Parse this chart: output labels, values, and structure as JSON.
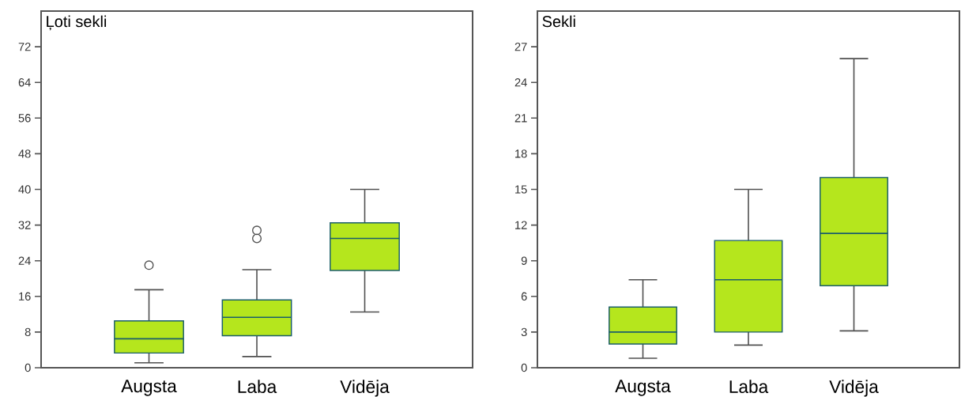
{
  "chart_data": [
    {
      "type": "box",
      "title": "Ļoti sekli",
      "categories": [
        "Augsta",
        "Laba",
        "Vidēja"
      ],
      "color": "#b5e61d",
      "ylim": [
        0,
        80
      ],
      "yticks": [
        0,
        8,
        16,
        24,
        32,
        40,
        48,
        56,
        64,
        72
      ],
      "boxes": [
        {
          "low": 1.1,
          "q1": 3.3,
          "median": 6.5,
          "q3": 10.5,
          "high": 17.5,
          "outliers": [
            23
          ]
        },
        {
          "low": 2.5,
          "q1": 7.2,
          "median": 11.3,
          "q3": 15.2,
          "high": 22,
          "outliers": [
            29,
            30.8
          ]
        },
        {
          "low": 12.5,
          "q1": 21.8,
          "median": 29,
          "q3": 32.5,
          "high": 40
        }
      ]
    },
    {
      "type": "box",
      "title": "Sekli",
      "categories": [
        "Augsta",
        "Laba",
        "Vidēja"
      ],
      "color": "#b5e61d",
      "ylim": [
        0,
        30
      ],
      "yticks": [
        0,
        3,
        6,
        9,
        12,
        15,
        18,
        21,
        24,
        27
      ],
      "boxes": [
        {
          "low": 0.8,
          "q1": 2,
          "median": 3,
          "q3": 5.1,
          "high": 7.4
        },
        {
          "low": 1.9,
          "q1": 3,
          "median": 7.4,
          "q3": 10.7,
          "high": 15
        },
        {
          "low": 3.1,
          "q1": 6.9,
          "median": 11.3,
          "q3": 16,
          "high": 26
        }
      ]
    }
  ]
}
